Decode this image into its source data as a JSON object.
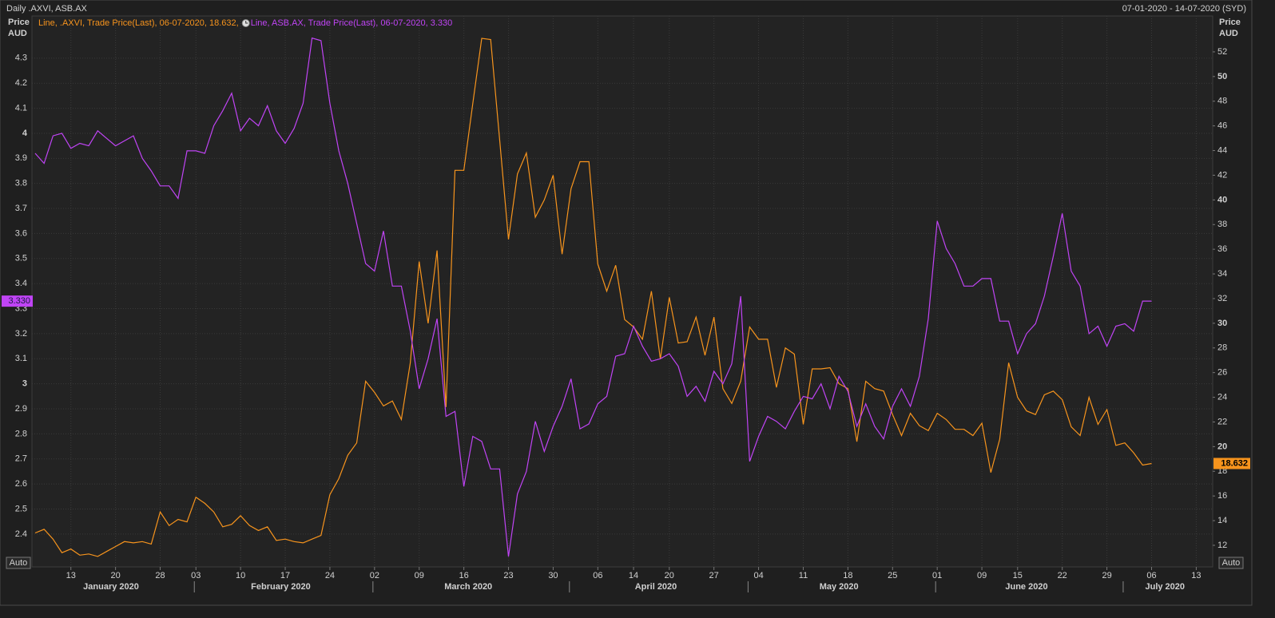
{
  "chart_data": {
    "type": "line",
    "title": "Daily .AXVI, ASB.AX",
    "subtitle": "07-01-2020 - 14-07-2020 (SYD)",
    "ylabel_lines": [
      "Price",
      "AUD"
    ],
    "y2label_lines": [
      "Price",
      "AUD"
    ],
    "scale_buttons": [
      "Auto",
      "Auto"
    ],
    "grid": true,
    "x": [
      "2020-01-07",
      "2020-01-08",
      "2020-01-09",
      "2020-01-10",
      "2020-01-13",
      "2020-01-14",
      "2020-01-15",
      "2020-01-16",
      "2020-01-17",
      "2020-01-20",
      "2020-01-21",
      "2020-01-22",
      "2020-01-23",
      "2020-01-24",
      "2020-01-28",
      "2020-01-29",
      "2020-01-30",
      "2020-01-31",
      "2020-02-03",
      "2020-02-04",
      "2020-02-05",
      "2020-02-06",
      "2020-02-07",
      "2020-02-10",
      "2020-02-11",
      "2020-02-12",
      "2020-02-13",
      "2020-02-14",
      "2020-02-17",
      "2020-02-18",
      "2020-02-19",
      "2020-02-20",
      "2020-02-21",
      "2020-02-24",
      "2020-02-25",
      "2020-02-26",
      "2020-02-27",
      "2020-02-28",
      "2020-03-02",
      "2020-03-03",
      "2020-03-04",
      "2020-03-05",
      "2020-03-06",
      "2020-03-09",
      "2020-03-10",
      "2020-03-11",
      "2020-03-12",
      "2020-03-13",
      "2020-03-16",
      "2020-03-17",
      "2020-03-18",
      "2020-03-19",
      "2020-03-20",
      "2020-03-23",
      "2020-03-24",
      "2020-03-25",
      "2020-03-26",
      "2020-03-27",
      "2020-03-30",
      "2020-03-31",
      "2020-04-01",
      "2020-04-02",
      "2020-04-03",
      "2020-04-06",
      "2020-04-07",
      "2020-04-08",
      "2020-04-09",
      "2020-04-14",
      "2020-04-15",
      "2020-04-16",
      "2020-04-17",
      "2020-04-20",
      "2020-04-21",
      "2020-04-22",
      "2020-04-23",
      "2020-04-24",
      "2020-04-27",
      "2020-04-28",
      "2020-04-29",
      "2020-04-30",
      "2020-05-01",
      "2020-05-04",
      "2020-05-05",
      "2020-05-06",
      "2020-05-07",
      "2020-05-08",
      "2020-05-11",
      "2020-05-12",
      "2020-05-13",
      "2020-05-14",
      "2020-05-15",
      "2020-05-18",
      "2020-05-19",
      "2020-05-20",
      "2020-05-21",
      "2020-05-22",
      "2020-05-25",
      "2020-05-26",
      "2020-05-27",
      "2020-05-28",
      "2020-05-29",
      "2020-06-01",
      "2020-06-02",
      "2020-06-03",
      "2020-06-04",
      "2020-06-05",
      "2020-06-09",
      "2020-06-10",
      "2020-06-11",
      "2020-06-12",
      "2020-06-15",
      "2020-06-16",
      "2020-06-17",
      "2020-06-18",
      "2020-06-19",
      "2020-06-22",
      "2020-06-23",
      "2020-06-24",
      "2020-06-25",
      "2020-06-26",
      "2020-06-29",
      "2020-06-30",
      "2020-07-01",
      "2020-07-02",
      "2020-07-03",
      "2020-07-06",
      "2020-07-07",
      "2020-07-08",
      "2020-07-09",
      "2020-07-10",
      "2020-07-13",
      "2020-07-14"
    ],
    "xticks": [
      {
        "value": "2020-01-13",
        "label": "13"
      },
      {
        "value": "2020-01-20",
        "label": "20"
      },
      {
        "value": "2020-01-28",
        "label": "28"
      },
      {
        "value": "2020-02-03",
        "label": "03"
      },
      {
        "value": "2020-02-10",
        "label": "10"
      },
      {
        "value": "2020-02-17",
        "label": "17"
      },
      {
        "value": "2020-02-24",
        "label": "24"
      },
      {
        "value": "2020-03-02",
        "label": "02"
      },
      {
        "value": "2020-03-09",
        "label": "09"
      },
      {
        "value": "2020-03-16",
        "label": "16"
      },
      {
        "value": "2020-03-23",
        "label": "23"
      },
      {
        "value": "2020-03-30",
        "label": "30"
      },
      {
        "value": "2020-04-06",
        "label": "06"
      },
      {
        "value": "2020-04-14",
        "label": "14"
      },
      {
        "value": "2020-04-20",
        "label": "20"
      },
      {
        "value": "2020-04-27",
        "label": "27"
      },
      {
        "value": "2020-05-04",
        "label": "04"
      },
      {
        "value": "2020-05-11",
        "label": "11"
      },
      {
        "value": "2020-05-18",
        "label": "18"
      },
      {
        "value": "2020-05-25",
        "label": "25"
      },
      {
        "value": "2020-06-01",
        "label": "01"
      },
      {
        "value": "2020-06-09",
        "label": "09"
      },
      {
        "value": "2020-06-15",
        "label": "15"
      },
      {
        "value": "2020-06-22",
        "label": "22"
      },
      {
        "value": "2020-06-29",
        "label": "29"
      },
      {
        "value": "2020-07-06",
        "label": "06"
      },
      {
        "value": "2020-07-13",
        "label": "13"
      }
    ],
    "months": [
      {
        "value": "2020-01",
        "label": "January 2020"
      },
      {
        "value": "2020-02",
        "label": "February 2020"
      },
      {
        "value": "2020-03",
        "label": "March 2020"
      },
      {
        "value": "2020-04",
        "label": "April 2020"
      },
      {
        "value": "2020-05",
        "label": "May 2020"
      },
      {
        "value": "2020-06",
        "label": "June 2020"
      },
      {
        "value": "2020-07",
        "label": "July 2020"
      }
    ],
    "ylim": [
      2.269,
      4.462
    ],
    "yticks": [
      2.4,
      2.5,
      2.6,
      2.7,
      2.8,
      2.9,
      3,
      3.1,
      3.2,
      3.3,
      3.4,
      3.5,
      3.6,
      3.7,
      3.8,
      3.9,
      4,
      4.1,
      4.2,
      4.3
    ],
    "y2lim": [
      10.25,
      54.78
    ],
    "y2ticks": [
      12,
      14,
      16,
      18,
      20,
      22,
      24,
      26,
      28,
      30,
      32,
      34,
      36,
      38,
      40,
      42,
      44,
      46,
      48,
      50,
      52
    ],
    "series": [
      {
        "name": ".AXVI",
        "legend": "Line, .AXVI, Trade Price(Last), 06-07-2020, 18.632,",
        "color": "#f7941d",
        "axis": "y2",
        "values": [
          13.0,
          13.3,
          12.5,
          11.4,
          11.7,
          11.2,
          11.3,
          11.1,
          11.5,
          11.9,
          12.3,
          12.2,
          12.3,
          12.1,
          14.7,
          13.6,
          14.1,
          13.9,
          15.9,
          15.4,
          14.7,
          13.5,
          13.7,
          14.4,
          13.6,
          13.2,
          13.5,
          12.4,
          12.5,
          12.3,
          12.2,
          12.5,
          12.8,
          16.1,
          17.4,
          19.3,
          20.3,
          25.3,
          24.4,
          23.3,
          23.7,
          22.2,
          26.8,
          35.0,
          30.0,
          35.9,
          23.2,
          42.4,
          42.4,
          47.8,
          53.1,
          53.0,
          44.9,
          36.8,
          42.1,
          43.8,
          38.6,
          40.0,
          42.0,
          35.6,
          40.9,
          43.1,
          43.1,
          34.8,
          32.6,
          34.7,
          30.3,
          29.7,
          28.7,
          32.6,
          27.1,
          32.1,
          28.4,
          28.5,
          30.5,
          27.4,
          30.5,
          24.7,
          23.5,
          25.3,
          29.7,
          28.7,
          28.7,
          24.8,
          28.0,
          27.5,
          21.8,
          26.3,
          26.3,
          26.4,
          25.1,
          24.7,
          20.4,
          25.3,
          24.7,
          24.5,
          22.6,
          20.9,
          22.7,
          21.7,
          21.3,
          22.7,
          22.2,
          21.4,
          21.4,
          20.9,
          21.9,
          17.9,
          20.6,
          26.8,
          24.0,
          22.9,
          22.6,
          24.2,
          24.5,
          23.8,
          21.6,
          20.9,
          24.0,
          21.8,
          23.0,
          20.1,
          20.3,
          19.5,
          18.5,
          18.632,
          null,
          null,
          null,
          null,
          null,
          null
        ]
      },
      {
        "name": "ASB.AX",
        "legend": "Line, ASB.AX, Trade Price(Last), 06-07-2020, 3.330",
        "color": "#c044f5",
        "axis": "y",
        "last_label": "3.330",
        "values": [
          3.92,
          3.88,
          3.99,
          4.0,
          3.94,
          3.96,
          3.95,
          4.01,
          3.98,
          3.95,
          3.97,
          3.99,
          3.9,
          3.85,
          3.79,
          3.79,
          3.74,
          3.93,
          3.93,
          3.92,
          4.03,
          4.09,
          4.16,
          4.01,
          4.06,
          4.03,
          4.11,
          4.01,
          3.96,
          4.02,
          4.12,
          4.38,
          4.37,
          4.12,
          3.93,
          3.8,
          3.64,
          3.48,
          3.45,
          3.61,
          3.39,
          3.39,
          3.21,
          2.98,
          3.1,
          3.26,
          2.87,
          2.89,
          2.59,
          2.79,
          2.77,
          2.66,
          2.66,
          2.31,
          2.56,
          2.65,
          2.85,
          2.73,
          2.83,
          2.91,
          3.02,
          2.82,
          2.84,
          2.92,
          2.95,
          3.11,
          3.12,
          3.23,
          3.15,
          3.09,
          3.1,
          3.12,
          3.07,
          2.95,
          2.99,
          2.93,
          3.05,
          3.0,
          3.08,
          3.35,
          2.69,
          2.79,
          2.87,
          2.85,
          2.82,
          2.89,
          2.95,
          2.94,
          3.0,
          2.9,
          3.03,
          2.97,
          2.83,
          2.92,
          2.83,
          2.78,
          2.91,
          2.98,
          2.91,
          3.03,
          3.26,
          3.65,
          3.54,
          3.48,
          3.39,
          3.39,
          3.42,
          3.42,
          3.25,
          3.25,
          3.12,
          3.2,
          3.24,
          3.35,
          3.51,
          3.68,
          3.45,
          3.39,
          3.2,
          3.23,
          3.15,
          3.23,
          3.24,
          3.21,
          3.33,
          3.33,
          null,
          null,
          null,
          null,
          null,
          null
        ]
      }
    ]
  }
}
